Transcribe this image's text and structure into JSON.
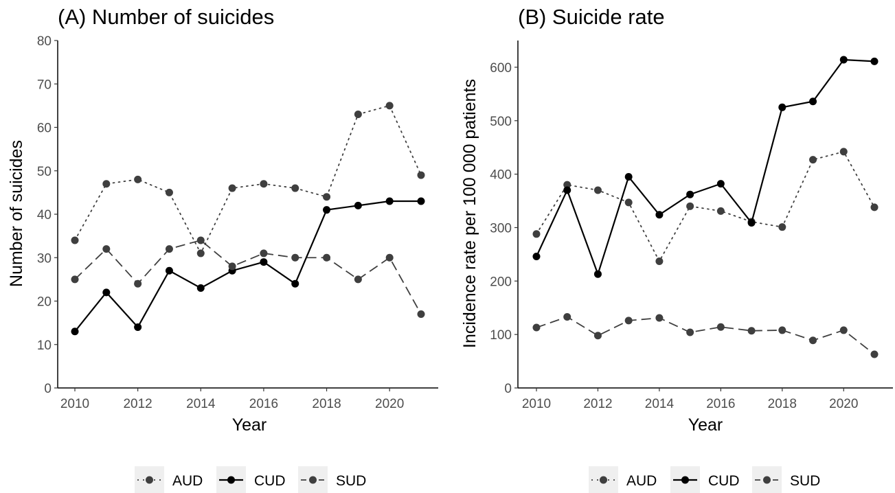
{
  "chart_data": [
    {
      "type": "line",
      "title": "(A) Number of suicides",
      "xlabel": "Year",
      "ylabel": "Number of suicides",
      "xlim": [
        2010,
        2021
      ],
      "ylim": [
        0,
        80
      ],
      "x_ticks": [
        2010,
        2012,
        2014,
        2016,
        2018,
        2020
      ],
      "y_ticks": [
        0,
        10,
        20,
        30,
        40,
        50,
        60,
        70,
        80
      ],
      "x": [
        2010,
        2011,
        2012,
        2013,
        2014,
        2015,
        2016,
        2017,
        2018,
        2019,
        2020,
        2021
      ],
      "series": [
        {
          "name": "AUD",
          "line_style": "dotted",
          "color": "#3f3f3f",
          "values": [
            34,
            47,
            48,
            45,
            31,
            46,
            47,
            46,
            44,
            63,
            65,
            49
          ]
        },
        {
          "name": "CUD",
          "line_style": "solid",
          "color": "#000000",
          "values": [
            13,
            22,
            14,
            27,
            23,
            27,
            29,
            24,
            41,
            42,
            43,
            43
          ]
        },
        {
          "name": "SUD",
          "line_style": "dashed",
          "color": "#3f3f3f",
          "values": [
            25,
            32,
            24,
            32,
            34,
            28,
            31,
            30,
            30,
            25,
            30,
            17
          ]
        }
      ],
      "grid": false,
      "legend_position": "bottom"
    },
    {
      "type": "line",
      "title": "(B) Suicide rate",
      "xlabel": "Year",
      "ylabel": "Incidence rate per 100 000 patients",
      "xlim": [
        2010,
        2021
      ],
      "ylim": [
        0,
        650
      ],
      "x_ticks": [
        2010,
        2012,
        2014,
        2016,
        2018,
        2020
      ],
      "y_ticks": [
        0,
        100,
        200,
        300,
        400,
        500,
        600
      ],
      "x": [
        2010,
        2011,
        2012,
        2013,
        2014,
        2015,
        2016,
        2017,
        2018,
        2019,
        2020,
        2021
      ],
      "series": [
        {
          "name": "AUD",
          "line_style": "dotted",
          "color": "#3f3f3f",
          "values": [
            288,
            380,
            370,
            347,
            237,
            340,
            331,
            311,
            301,
            427,
            442,
            338
          ]
        },
        {
          "name": "CUD",
          "line_style": "solid",
          "color": "#000000",
          "values": [
            246,
            370,
            213,
            395,
            324,
            362,
            382,
            309,
            525,
            536,
            614,
            611
          ]
        },
        {
          "name": "SUD",
          "line_style": "dashed",
          "color": "#3f3f3f",
          "values": [
            113,
            133,
            98,
            126,
            131,
            104,
            114,
            107,
            108,
            89,
            108,
            63
          ]
        }
      ],
      "grid": false,
      "legend_position": "bottom"
    }
  ]
}
